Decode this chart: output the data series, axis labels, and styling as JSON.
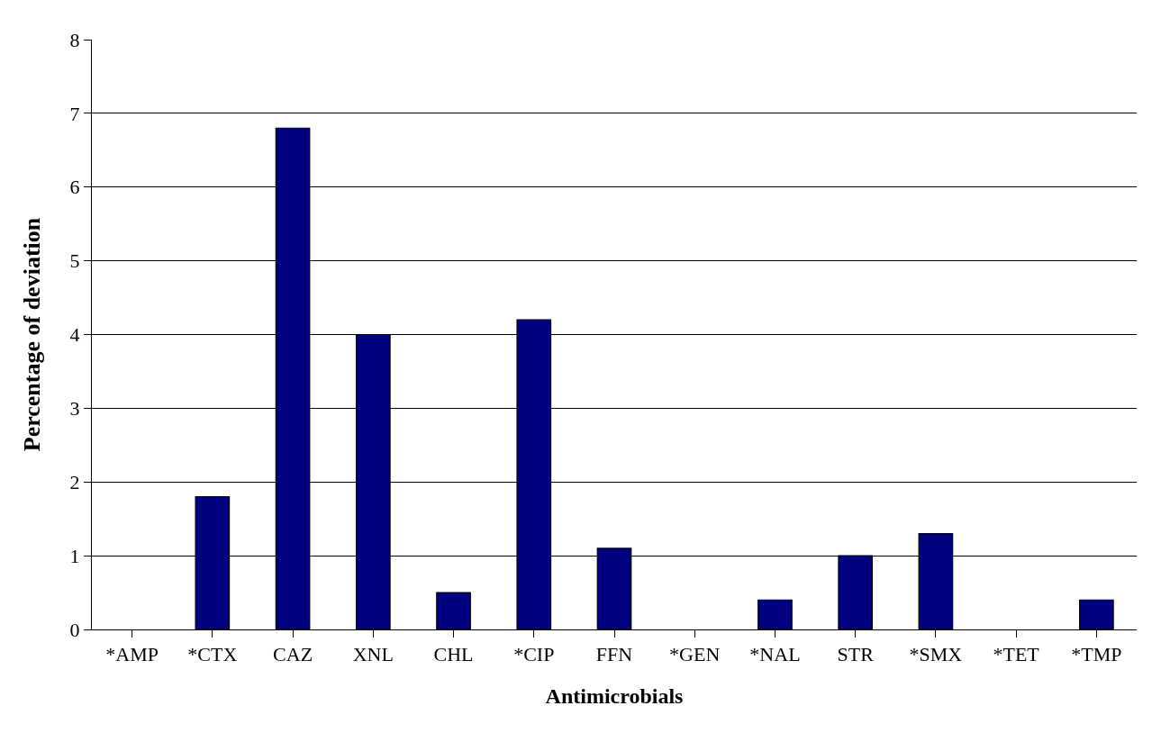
{
  "chart_data": {
    "type": "bar",
    "xlabel": "Antimicrobials",
    "ylabel": "Percentage of deviation",
    "categories": [
      "*AMP",
      "*CTX",
      "CAZ",
      "XNL",
      "CHL",
      "*CIP",
      "FFN",
      "*GEN",
      "*NAL",
      "STR",
      "*SMX",
      "*TET",
      "*TMP"
    ],
    "values": [
      0,
      1.8,
      6.8,
      4.0,
      0.5,
      4.2,
      1.1,
      0,
      0.4,
      1.0,
      1.3,
      0,
      0.4
    ],
    "color": "#000080",
    "ylim": [
      0,
      8
    ],
    "yticks": [
      0,
      1,
      2,
      3,
      4,
      5,
      6,
      7,
      8
    ],
    "grid": "y"
  }
}
